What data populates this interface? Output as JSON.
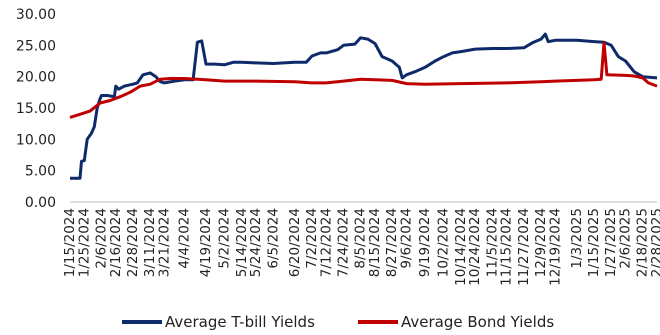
{
  "chart_data": {
    "type": "line",
    "title": "",
    "xlabel": "",
    "ylabel": "",
    "ylim": [
      0,
      30
    ],
    "y_ticks": [
      "0.00",
      "5.00",
      "10.00",
      "15.00",
      "20.00",
      "25.00",
      "30.00"
    ],
    "grid": false,
    "legend_position": "bottom",
    "x_tick_labels": [
      "1/15/2024",
      "1/25/2024",
      "2/6/2024",
      "2/16/2024",
      "2/28/2024",
      "3/11/2024",
      "3/21/2024",
      "4/4/2024",
      "4/19/2024",
      "5/2/2024",
      "5/14/2024",
      "5/24/2024",
      "6/5/2024",
      "6/20/2024",
      "7/2/2024",
      "7/12/2024",
      "7/24/2024",
      "8/5/2024",
      "8/15/2024",
      "8/27/2024",
      "9/6/2024",
      "9/19/2024",
      "10/2/2024",
      "10/14/2024",
      "10/24/2024",
      "11/5/2024",
      "11/15/2024",
      "11/27/2024",
      "12/9/2024",
      "12/19/2024",
      "1/3/2025",
      "1/15/2025",
      "1/27/2025",
      "2/6/2025",
      "2/18/2025",
      "2/28/2025"
    ],
    "series": [
      {
        "name": "Average T-bill Yields",
        "color": "#0e2a6b",
        "points": [
          [
            "1/15/2024",
            3.8
          ],
          [
            "1/22/2024",
            3.8
          ],
          [
            "1/23/2024",
            6.5
          ],
          [
            "1/25/2024",
            6.6
          ],
          [
            "1/27/2024",
            10
          ],
          [
            "1/30/2024",
            11
          ],
          [
            "2/1/2024",
            12
          ],
          [
            "2/3/2024",
            15
          ],
          [
            "2/5/2024",
            16.5
          ],
          [
            "2/6/2024",
            17
          ],
          [
            "2/10/2024",
            17
          ],
          [
            "2/15/2024",
            16.8
          ],
          [
            "2/16/2024",
            18.5
          ],
          [
            "2/18/2024",
            18
          ],
          [
            "2/22/2024",
            18.5
          ],
          [
            "2/28/2024",
            18.8
          ],
          [
            "3/2/2024",
            19
          ],
          [
            "3/6/2024",
            20.3
          ],
          [
            "3/11/2024",
            20.6
          ],
          [
            "3/15/2024",
            20
          ],
          [
            "3/18/2024",
            19.2
          ],
          [
            "3/21/2024",
            19
          ],
          [
            "3/28/2024",
            19.3
          ],
          [
            "4/4/2024",
            19.5
          ],
          [
            "4/10/2024",
            19.5
          ],
          [
            "4/13/2024",
            25.5
          ],
          [
            "4/16/2024",
            25.7
          ],
          [
            "4/19/2024",
            22
          ],
          [
            "4/25/2024",
            22
          ],
          [
            "5/2/2024",
            21.9
          ],
          [
            "5/8/2024",
            22.3
          ],
          [
            "5/14/2024",
            22.3
          ],
          [
            "5/24/2024",
            22.2
          ],
          [
            "6/5/2024",
            22.1
          ],
          [
            "6/20/2024",
            22.3
          ],
          [
            "6/28/2024",
            22.3
          ],
          [
            "7/2/2024",
            23.3
          ],
          [
            "7/8/2024",
            23.8
          ],
          [
            "7/12/2024",
            23.8
          ],
          [
            "7/20/2024",
            24.3
          ],
          [
            "7/24/2024",
            25
          ],
          [
            "8/1/2024",
            25.2
          ],
          [
            "8/5/2024",
            26.2
          ],
          [
            "8/10/2024",
            26
          ],
          [
            "8/15/2024",
            25.3
          ],
          [
            "8/20/2024",
            23.2
          ],
          [
            "8/27/2024",
            22.5
          ],
          [
            "9/1/2024",
            21.5
          ],
          [
            "9/3/2024",
            19.8
          ],
          [
            "9/6/2024",
            20.3
          ],
          [
            "9/12/2024",
            20.8
          ],
          [
            "9/19/2024",
            21.5
          ],
          [
            "9/26/2024",
            22.5
          ],
          [
            "10/2/2024",
            23.2
          ],
          [
            "10/8/2024",
            23.8
          ],
          [
            "10/14/2024",
            24
          ],
          [
            "10/24/2024",
            24.4
          ],
          [
            "11/5/2024",
            24.5
          ],
          [
            "11/15/2024",
            24.5
          ],
          [
            "11/27/2024",
            24.6
          ],
          [
            "12/3/2024",
            25.4
          ],
          [
            "12/9/2024",
            26
          ],
          [
            "12/12/2024",
            26.8
          ],
          [
            "12/14/2024",
            25.6
          ],
          [
            "12/19/2024",
            25.8
          ],
          [
            "1/3/2025",
            25.8
          ],
          [
            "1/15/2025",
            25.6
          ],
          [
            "1/22/2025",
            25.5
          ],
          [
            "1/27/2025",
            25
          ],
          [
            "2/1/2025",
            23.2
          ],
          [
            "2/6/2025",
            22.5
          ],
          [
            "2/12/2025",
            20.8
          ],
          [
            "2/18/2025",
            20
          ],
          [
            "2/28/2025",
            19.8
          ]
        ]
      },
      {
        "name": "Average Bond Yields",
        "color": "#c00000",
        "points": [
          [
            "1/15/2024",
            13.5
          ],
          [
            "1/22/2024",
            14
          ],
          [
            "1/29/2024",
            14.5
          ],
          [
            "2/5/2024",
            15.8
          ],
          [
            "2/12/2024",
            16.2
          ],
          [
            "2/19/2024",
            16.8
          ],
          [
            "2/26/2024",
            17.5
          ],
          [
            "3/4/2024",
            18.5
          ],
          [
            "3/11/2024",
            18.8
          ],
          [
            "3/18/2024",
            19.6
          ],
          [
            "3/25/2024",
            19.7
          ],
          [
            "4/4/2024",
            19.7
          ],
          [
            "4/19/2024",
            19.5
          ],
          [
            "5/2/2024",
            19.3
          ],
          [
            "5/24/2024",
            19.3
          ],
          [
            "6/20/2024",
            19.2
          ],
          [
            "7/2/2024",
            19
          ],
          [
            "7/12/2024",
            19
          ],
          [
            "7/24/2024",
            19.3
          ],
          [
            "8/5/2024",
            19.6
          ],
          [
            "8/15/2024",
            19.5
          ],
          [
            "8/27/2024",
            19.4
          ],
          [
            "9/6/2024",
            18.9
          ],
          [
            "9/19/2024",
            18.8
          ],
          [
            "10/14/2024",
            18.9
          ],
          [
            "11/15/2024",
            19
          ],
          [
            "12/9/2024",
            19.2
          ],
          [
            "12/19/2024",
            19.3
          ],
          [
            "1/3/2025",
            19.4
          ],
          [
            "1/15/2025",
            19.5
          ],
          [
            "1/20/2025",
            19.6
          ],
          [
            "1/22/2025",
            25.4
          ],
          [
            "1/24/2025",
            20.3
          ],
          [
            "2/6/2025",
            20.2
          ],
          [
            "2/12/2025",
            20.1
          ],
          [
            "2/18/2025",
            19.8
          ],
          [
            "2/22/2025",
            19
          ],
          [
            "2/28/2025",
            18.5
          ]
        ]
      }
    ]
  }
}
